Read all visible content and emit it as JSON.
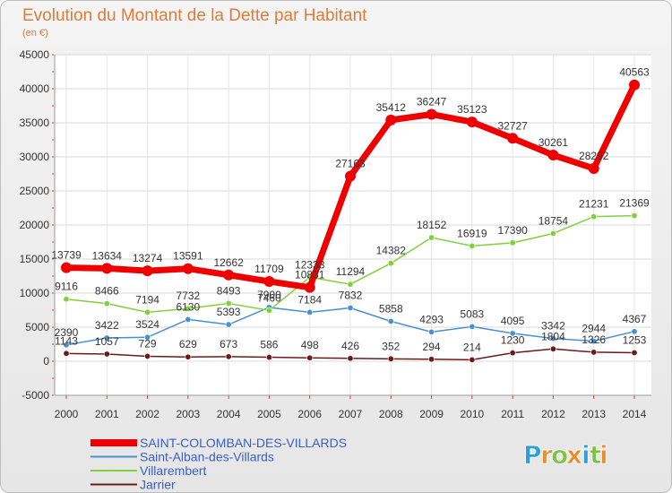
{
  "chart_data": {
    "type": "line",
    "title": "Evolution du Montant de la Dette par Habitant",
    "subtitle": "(en €)",
    "xlabel": "",
    "ylabel": "",
    "categories": [
      "2000",
      "2001",
      "2002",
      "2003",
      "2004",
      "2005",
      "2006",
      "2007",
      "2008",
      "2009",
      "2010",
      "2011",
      "2012",
      "2013",
      "2014"
    ],
    "ylim": [
      -5000,
      45000
    ],
    "yticks": [
      -5000,
      0,
      5000,
      10000,
      15000,
      20000,
      25000,
      30000,
      35000,
      40000,
      45000
    ],
    "grid": true,
    "legend_position": "bottom-left",
    "series": [
      {
        "name": "SAINT-COLOMBAN-DES-VILLARDS",
        "color": "#ee0000",
        "values": [
          13739,
          13634,
          13274,
          13591,
          12662,
          11709,
          10831,
          27163,
          35412,
          36247,
          35123,
          32727,
          30261,
          28292,
          40563
        ]
      },
      {
        "name": "Saint-Alban-des-Villards",
        "color": "#4a8fcf",
        "values": [
          2390,
          3422,
          3524,
          6130,
          5393,
          7900,
          7184,
          7832,
          5858,
          4293,
          5083,
          4095,
          3342,
          2944,
          4367
        ]
      },
      {
        "name": "Villarembert",
        "color": "#7fd13b",
        "values": [
          9116,
          8466,
          7194,
          7732,
          8493,
          7460,
          12333,
          11294,
          14382,
          18152,
          16919,
          17390,
          18754,
          21231,
          21369
        ]
      },
      {
        "name": "Jarrier",
        "color": "#6b1a1a",
        "values": [
          1143,
          1057,
          729,
          629,
          673,
          586,
          498,
          426,
          352,
          294,
          214,
          1230,
          1804,
          1326,
          1253
        ]
      }
    ]
  },
  "logo": {
    "letters": [
      "P",
      "r",
      "o",
      "x",
      "i",
      "t",
      "i"
    ],
    "colors": [
      "#2f9fd8",
      "#e98c2a",
      "#7dc242",
      "#e98c2a",
      "#2f9fd8",
      "#7dc242",
      "#e98c2a"
    ]
  }
}
